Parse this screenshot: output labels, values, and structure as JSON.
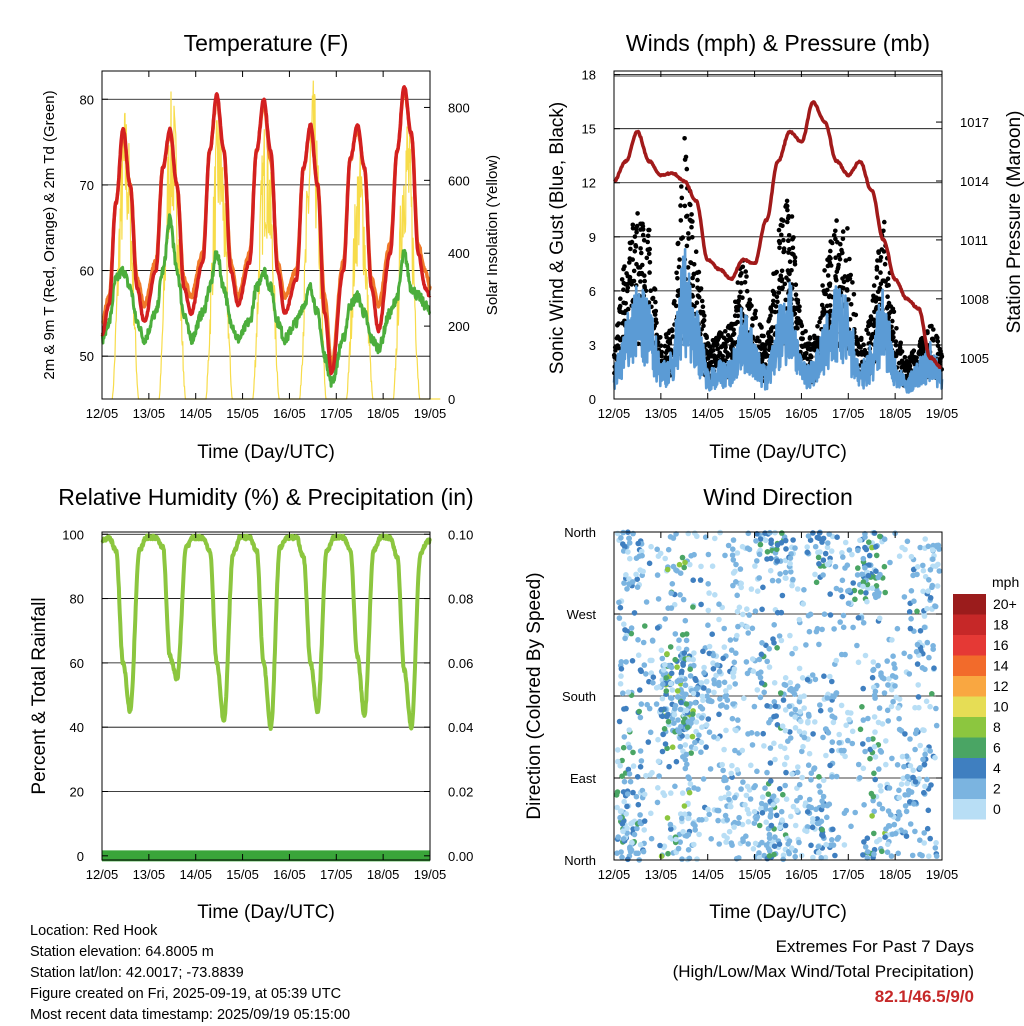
{
  "panels": {
    "temperature": {
      "title": "Temperature (F)",
      "xlabel": "Time (Day/UTC)",
      "ylabel_left": "2m & 9m T (Red, Orange) & 2m Td (Green)",
      "ylabel_right": "Solar Insolation (Yellow)",
      "yticks_left": [
        "50",
        "60",
        "70",
        "80"
      ],
      "yticks_right": [
        "0",
        "200",
        "400",
        "600",
        "800"
      ]
    },
    "winds": {
      "title": "Winds (mph) & Pressure (mb)",
      "xlabel": "Time (Day/UTC)",
      "ylabel_left": "Sonic Wind & Gust (Blue, Black)",
      "ylabel_right": "Station Pressure (Maroon)",
      "yticks_left": [
        "0",
        "3",
        "6",
        "9",
        "12",
        "15",
        "18"
      ],
      "yticks_right": [
        "1005",
        "1008",
        "1011",
        "1014",
        "1017"
      ]
    },
    "humidity": {
      "title": "Relative Humidity (%) & Precipitation (in)",
      "xlabel": "Time (Day/UTC)",
      "ylabel_left": "Percent & Total Rainfall",
      "yticks_left": [
        "0",
        "20",
        "40",
        "60",
        "80",
        "100"
      ],
      "yticks_right": [
        "0.00",
        "0.02",
        "0.04",
        "0.06",
        "0.08",
        "0.10"
      ]
    },
    "direction": {
      "title": "Wind Direction",
      "xlabel": "Time (Day/UTC)",
      "ylabel_left": "Direction (Colored By Speed)",
      "yticks_left": [
        "North",
        "East",
        "South",
        "West",
        "North"
      ],
      "legend_title": "mph",
      "legend_labels": [
        "20+",
        "18",
        "16",
        "14",
        "12",
        "10",
        "8",
        "6",
        "4",
        "2",
        "0"
      ],
      "legend_colors": [
        "#9b1c1c",
        "#c62828",
        "#e53935",
        "#f26b2b",
        "#f9a741",
        "#e6dd55",
        "#8cc63f",
        "#4aa564",
        "#3f7fc0",
        "#7bb4e0",
        "#b8def5"
      ]
    }
  },
  "x_ticks": [
    "12/05",
    "13/05",
    "14/05",
    "15/05",
    "16/05",
    "17/05",
    "18/05",
    "19/05"
  ],
  "info": {
    "location": "Location: Red Hook",
    "elevation": "Station elevation: 64.8005 m",
    "latlon": "Station lat/lon: 42.0017; -73.8839",
    "created": "Figure created on Fri, 2025-09-19, at 05:39 UTC",
    "recent": "Most recent data timestamp: 2025/09/19 05:15:00"
  },
  "extremes": {
    "line1": "Extremes For Past 7 Days",
    "line2": "(High/Low/Max Wind/Total Precipitation)",
    "value": "82.1/46.5/9/0"
  },
  "colors": {
    "temp_2m": "#d32020",
    "temp_9m": "#f07a2a",
    "dewpoint": "#4cae3c",
    "solar": "#f7dc4a",
    "wind": "#5b9bd5",
    "gust": "#000000",
    "pressure": "#a11a1a",
    "rh": "#8cc63f",
    "precip": "#3aa53a"
  },
  "chart_data": [
    {
      "type": "line",
      "title": "Temperature (F)",
      "xlabel": "Time (Day/UTC)",
      "ylabel": "2m & 9m T (Red, Orange) & 2m Td (Green)",
      "y2label": "Solar Insolation (Yellow)",
      "ylim": [
        45,
        83.3
      ],
      "y2lim": [
        0,
        900
      ],
      "x": [
        0,
        0.15,
        0.3,
        0.45,
        0.6,
        0.75,
        0.9,
        1.15,
        1.3,
        1.45,
        1.6,
        1.75,
        1.9,
        2.15,
        2.3,
        2.45,
        2.6,
        2.75,
        2.9,
        3.15,
        3.3,
        3.45,
        3.6,
        3.75,
        3.9,
        4.15,
        4.3,
        4.45,
        4.6,
        4.75,
        4.9,
        5.15,
        5.3,
        5.45,
        5.6,
        5.75,
        5.9,
        6.15,
        6.3,
        6.45,
        6.6,
        6.75,
        6.9,
        7.0
      ],
      "series": [
        {
          "name": "2m T",
          "values": [
            52.5,
            56,
            68,
            76.5,
            70,
            58,
            54,
            60,
            72,
            76.5,
            70,
            58,
            55,
            61,
            74,
            80.5,
            74,
            60,
            56,
            61,
            74,
            80,
            74,
            60,
            55,
            59,
            72,
            77,
            70,
            55,
            48,
            60,
            73,
            77,
            72,
            58,
            53,
            62,
            74,
            81.5,
            76,
            62,
            58,
            57
          ]
        },
        {
          "name": "9m T",
          "values": [
            54,
            57,
            68,
            76,
            70,
            59,
            56,
            61,
            72,
            76,
            70,
            59,
            57,
            62,
            74,
            80,
            74,
            61,
            57,
            62,
            74,
            79.5,
            73,
            61,
            57,
            60,
            72,
            76.5,
            70,
            57,
            49,
            61,
            73,
            76.5,
            72,
            59,
            56,
            63,
            74,
            81,
            76,
            63,
            60,
            58
          ]
        },
        {
          "name": "2m Td",
          "values": [
            52,
            54,
            59,
            60,
            58,
            54,
            52,
            55,
            60,
            66,
            60,
            55,
            52,
            55,
            58,
            62,
            58,
            54,
            52,
            54,
            58,
            60,
            58,
            54,
            52,
            54,
            56,
            58,
            55,
            50,
            47,
            52,
            56,
            57,
            55,
            52,
            51,
            55,
            57,
            62,
            58,
            57,
            56,
            55
          ]
        },
        {
          "name": "Solar",
          "axis": "right",
          "values": [
            0,
            0,
            700,
            820,
            250,
            0,
            0,
            0,
            650,
            860,
            100,
            0,
            0,
            0,
            650,
            820,
            150,
            0,
            0,
            0,
            700,
            800,
            100,
            0,
            0,
            0,
            680,
            880,
            100,
            0,
            0,
            0,
            600,
            700,
            150,
            0,
            0,
            0,
            650,
            820,
            100,
            0,
            0,
            0
          ]
        }
      ]
    },
    {
      "type": "line",
      "title": "Winds (mph) & Pressure (mb)",
      "xlabel": "Time (Day/UTC)",
      "ylabel": "Sonic Wind & Gust (Blue, Black)",
      "y2label": "Station Pressure (Maroon)",
      "ylim": [
        0,
        18.2
      ],
      "y2lim": [
        1002.9,
        1019.6
      ],
      "x": [
        0,
        0.25,
        0.5,
        0.75,
        1.0,
        1.25,
        1.5,
        1.75,
        2.0,
        2.25,
        2.5,
        2.75,
        3.0,
        3.25,
        3.5,
        3.75,
        4.0,
        4.25,
        4.5,
        4.75,
        5.0,
        5.25,
        5.5,
        5.75,
        6.0,
        6.25,
        6.5,
        6.75,
        7.0
      ],
      "series": [
        {
          "name": "Sonic Wind",
          "values": [
            1.5,
            4,
            6,
            5,
            2,
            2.5,
            8,
            5,
            1.5,
            2,
            2,
            5,
            3,
            1.5,
            4.5,
            6.5,
            2,
            2,
            4,
            6,
            5,
            1.5,
            3,
            6,
            2,
            1,
            2,
            3,
            1.5
          ]
        },
        {
          "name": "Gust",
          "values": [
            2.5,
            8,
            10,
            9,
            3,
            4,
            14,
            8,
            3,
            3.5,
            4,
            8,
            5,
            3,
            9,
            11,
            4,
            3,
            7,
            10,
            9,
            3,
            5,
            10,
            4,
            2,
            3,
            4,
            3
          ]
        },
        {
          "name": "Station Pressure",
          "axis": "right",
          "values": [
            1014,
            1015,
            1016.5,
            1015,
            1014.3,
            1014.4,
            1014,
            1013,
            1010,
            1009.5,
            1009,
            1010,
            1009.8,
            1012,
            1015,
            1016.5,
            1016,
            1018,
            1017,
            1015,
            1014.3,
            1015,
            1013.5,
            1011,
            1009,
            1008,
            1007.5,
            1005,
            1004.5
          ]
        }
      ]
    },
    {
      "type": "line",
      "title": "Relative Humidity (%) & Precipitation (in)",
      "xlabel": "Time (Day/UTC)",
      "ylabel": "Percent & Total Rainfall",
      "ylim": [
        -1.3,
        100.7
      ],
      "y2lim": [
        -0.0013,
        0.1007
      ],
      "x": [
        0,
        0.15,
        0.3,
        0.45,
        0.6,
        0.8,
        0.95,
        1.15,
        1.3,
        1.45,
        1.6,
        1.8,
        1.95,
        2.15,
        2.3,
        2.45,
        2.6,
        2.8,
        2.95,
        3.15,
        3.3,
        3.45,
        3.6,
        3.8,
        3.95,
        4.15,
        4.3,
        4.45,
        4.6,
        4.8,
        4.95,
        5.15,
        5.3,
        5.45,
        5.6,
        5.8,
        5.95,
        6.15,
        6.3,
        6.45,
        6.6,
        6.8,
        6.95,
        7.0
      ],
      "series": [
        {
          "name": "RH",
          "values": [
            98,
            99,
            95,
            60,
            45,
            95,
            99,
            99,
            96,
            62,
            55,
            96,
            99,
            99,
            95,
            60,
            42,
            94,
            99,
            99,
            95,
            60,
            40,
            96,
            99,
            99,
            93,
            60,
            45,
            95,
            99,
            99,
            95,
            62,
            44,
            95,
            99,
            99,
            93,
            58,
            40,
            94,
            98,
            98
          ]
        },
        {
          "name": "Total Rainfall",
          "axis": "right",
          "values": [
            0,
            0,
            0,
            0,
            0,
            0,
            0,
            0,
            0,
            0,
            0,
            0,
            0,
            0,
            0,
            0,
            0,
            0,
            0,
            0,
            0,
            0,
            0,
            0,
            0,
            0,
            0,
            0,
            0,
            0,
            0,
            0,
            0,
            0,
            0,
            0,
            0,
            0,
            0,
            0,
            0,
            0,
            0,
            0
          ]
        }
      ]
    },
    {
      "type": "scatter",
      "title": "Wind Direction",
      "xlabel": "Time (Day/UTC)",
      "ylabel": "Direction (Colored By Speed)",
      "ylim": [
        0,
        360
      ],
      "x": [
        0.1,
        0.3,
        0.4,
        0.5,
        0.8,
        1.2,
        1.3,
        1.4,
        1.5,
        1.7,
        2.0,
        2.3,
        2.5,
        2.8,
        3.1,
        3.3,
        3.4,
        3.6,
        3.9,
        4.2,
        4.4,
        4.6,
        4.8,
        5.1,
        5.4,
        5.5,
        5.8,
        6.1,
        6.4,
        6.6,
        6.8
      ],
      "series": [
        {
          "name": "Direction",
          "values": [
            20,
            60,
            30,
            340,
            200,
            160,
            180,
            190,
            40,
            150,
            170,
            200,
            60,
            300,
            40,
            15,
            30,
            350,
            160,
            60,
            20,
            350,
            150,
            300,
            330,
            345,
            180,
            60,
            100,
            250,
            340
          ]
        },
        {
          "name": "Speed",
          "values": [
            2,
            6,
            5,
            4,
            3,
            4,
            7,
            8,
            2,
            3,
            4,
            3,
            2,
            2,
            3,
            5,
            6,
            3,
            2,
            3,
            4,
            5,
            2,
            3,
            6,
            7,
            2,
            3,
            4,
            5,
            2
          ]
        }
      ]
    }
  ]
}
